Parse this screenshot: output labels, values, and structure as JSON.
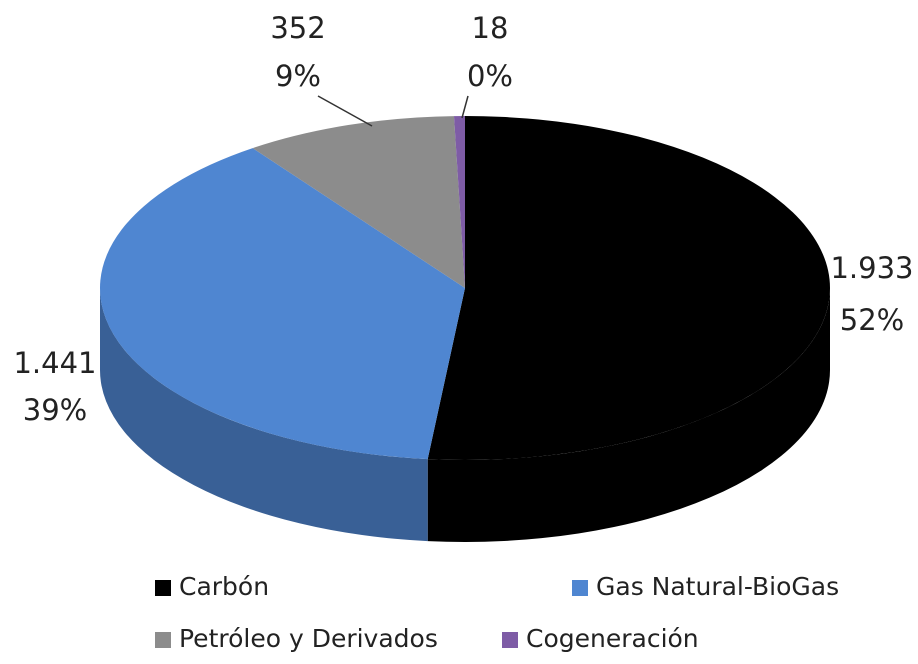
{
  "chart_data": {
    "type": "pie",
    "categories": [
      "Carbón",
      "Gas Natural-BioGas",
      "Petróleo y Derivados",
      "Cogeneración"
    ],
    "values": [
      1933,
      1441,
      352,
      18
    ],
    "value_labels": [
      "1.933",
      "1.441",
      "352",
      "18"
    ],
    "percent_labels": [
      "52%",
      "39%",
      "9%",
      "0%"
    ],
    "colors": [
      "#000000",
      "#4f86d1",
      "#8c8c8c",
      "#7e5ca6"
    ]
  }
}
